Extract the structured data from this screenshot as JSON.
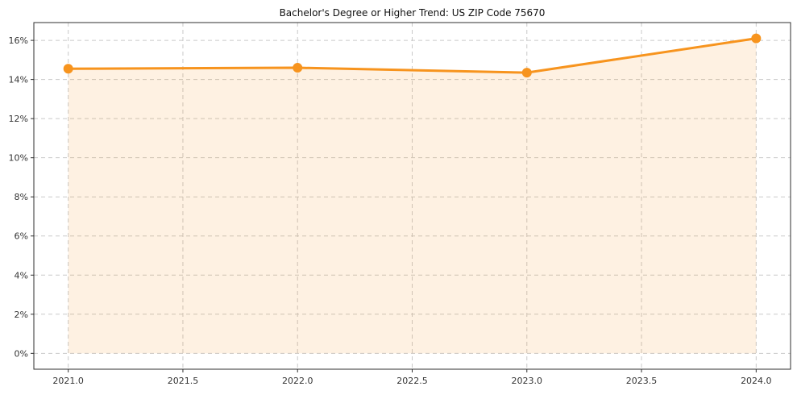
{
  "chart_data": {
    "type": "area",
    "title": "Bachelor's Degree or Higher Trend: US ZIP Code 75670",
    "series_name": "Bachelor's Degree or Higher",
    "x": [
      2021,
      2022,
      2023,
      2024
    ],
    "values": [
      14.55,
      14.6,
      14.35,
      16.1
    ],
    "xlabel": "",
    "ylabel": "",
    "xlim": [
      2020.85,
      2024.15
    ],
    "ylim": [
      -0.81,
      16.91
    ],
    "x_ticks": [
      2021.0,
      2021.5,
      2022.0,
      2022.5,
      2023.0,
      2023.5,
      2024.0
    ],
    "x_tick_labels": [
      "2021.0",
      "2021.5",
      "2022.0",
      "2022.5",
      "2023.0",
      "2023.5",
      "2024.0"
    ],
    "y_ticks": [
      0,
      2,
      4,
      6,
      8,
      10,
      12,
      14,
      16
    ],
    "y_tick_labels": [
      "0%",
      "2%",
      "4%",
      "6%",
      "8%",
      "10%",
      "12%",
      "14%",
      "16%"
    ],
    "grid": true,
    "grid_style": "dashed",
    "legend": false,
    "colors": {
      "line": "#f7941e",
      "marker": "#f7941e",
      "grid": "#c9c9c9",
      "spine": "#2f2f2f",
      "tick_label": "#333333",
      "title": "#111111",
      "background": "#ffffff"
    }
  }
}
